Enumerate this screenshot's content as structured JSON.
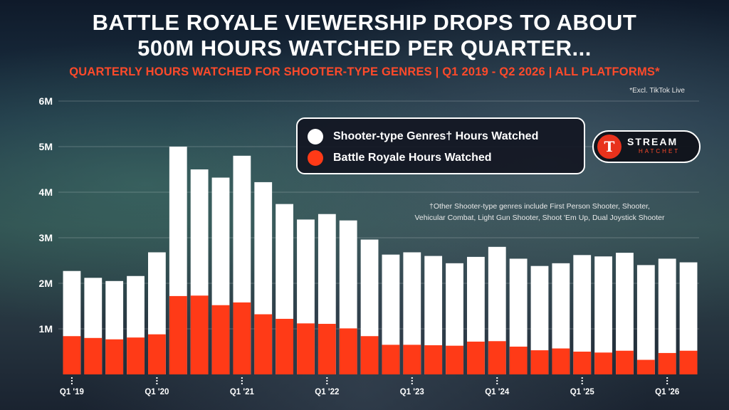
{
  "title_lines": [
    "Battle Royale Viewership Drops to About",
    "500M Hours Watched per Quarter..."
  ],
  "subtitle": "Quarterly Hours Watched for Shooter-Type Genres | Q1 2019 - Q2 2026 | All Platforms*",
  "footnote_top": "*Excl. TikTok Live",
  "footnote_lines": [
    "†Other Shooter-type genres include First Person Shooter, Shooter,",
    "Vehicular Combat, Light Gun Shooter, Shoot 'Em Up, Dual Joystick Shooter"
  ],
  "logo": {
    "mark": "T",
    "line1": "STREAM",
    "line2": "HATCHET"
  },
  "colors": {
    "shooter": "#ffffff",
    "battle_royale": "#ff3a17",
    "accent": "#ff4a2a"
  },
  "chart_data": {
    "type": "bar",
    "stacked": false,
    "overlapping": true,
    "ylim": [
      0,
      6000000
    ],
    "yticks": [
      1000000,
      2000000,
      3000000,
      4000000,
      5000000,
      6000000
    ],
    "ytick_labels": [
      "1M",
      "2M",
      "3M",
      "4M",
      "5M",
      "6M"
    ],
    "grid": true,
    "legend_position": "top-center",
    "categories": [
      "Q1 2019",
      "Q2 2019",
      "Q3 2019",
      "Q4 2019",
      "Q1 2020",
      "Q2 2020",
      "Q3 2020",
      "Q4 2020",
      "Q1 2021",
      "Q2 2021",
      "Q3 2021",
      "Q4 2021",
      "Q1 2022",
      "Q2 2022",
      "Q3 2022",
      "Q4 2022",
      "Q1 2023",
      "Q2 2023",
      "Q3 2023",
      "Q4 2023",
      "Q1 2024",
      "Q2 2024",
      "Q3 2024",
      "Q4 2024",
      "Q1 2025",
      "Q2 2025",
      "Q3 2025",
      "Q4 2025",
      "Q1 2026",
      "Q2 2026"
    ],
    "xtick_labels": [
      {
        "index": 0,
        "label": "Q1 '19"
      },
      {
        "index": 4,
        "label": "Q1 '20"
      },
      {
        "index": 8,
        "label": "Q1 '21"
      },
      {
        "index": 12,
        "label": "Q1 '22"
      },
      {
        "index": 16,
        "label": "Q1 '23"
      },
      {
        "index": 20,
        "label": "Q1 '24"
      },
      {
        "index": 24,
        "label": "Q1 '25"
      },
      {
        "index": 28,
        "label": "Q1 '26"
      }
    ],
    "series": [
      {
        "name": "Shooter-type Genres† Hours Watched",
        "values": [
          2270000,
          2120000,
          2050000,
          2160000,
          2680000,
          5000000,
          4500000,
          4320000,
          4800000,
          4220000,
          3740000,
          3400000,
          3520000,
          3380000,
          2960000,
          2630000,
          2680000,
          2600000,
          2440000,
          2580000,
          2800000,
          2540000,
          2380000,
          2440000,
          2620000,
          2590000,
          2670000,
          2400000,
          2540000,
          2460000
        ]
      },
      {
        "name": "Battle Royale Hours Watched",
        "values": [
          840000,
          800000,
          770000,
          810000,
          880000,
          1720000,
          1730000,
          1520000,
          1580000,
          1320000,
          1220000,
          1120000,
          1110000,
          1010000,
          840000,
          650000,
          650000,
          640000,
          630000,
          720000,
          730000,
          610000,
          530000,
          570000,
          500000,
          480000,
          520000,
          320000,
          470000,
          520000
        ]
      }
    ]
  }
}
